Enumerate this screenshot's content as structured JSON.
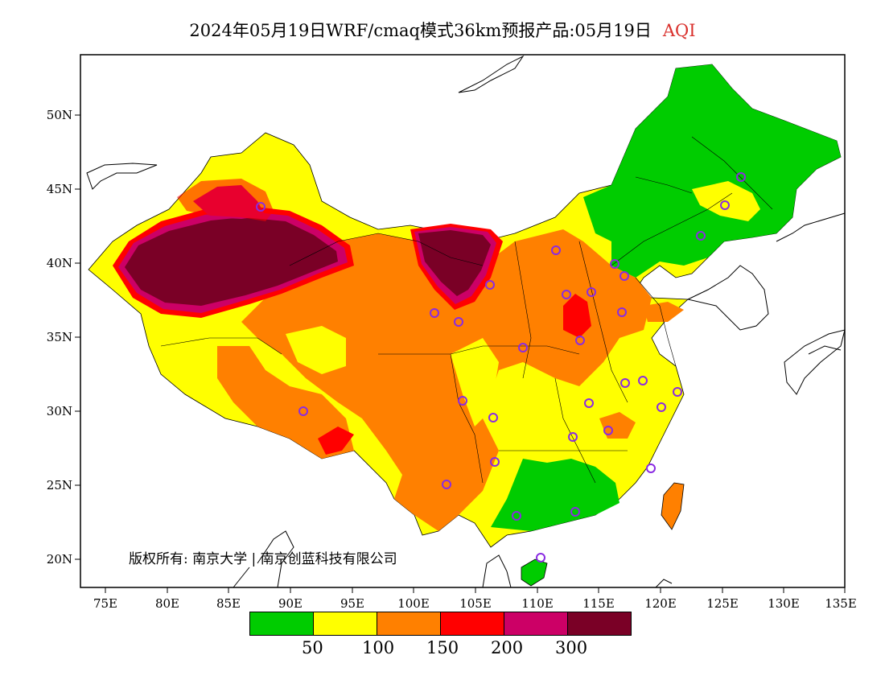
{
  "title": {
    "main": "2024年05月19日WRF/cmaq模式36km预报产品:05月19日",
    "pollutant": "AQI"
  },
  "map": {
    "lat_labels": [
      "50N",
      "45N",
      "40N",
      "35N",
      "30N",
      "25N",
      "20N"
    ],
    "lon_labels": [
      "75E",
      "80E",
      "85E",
      "90E",
      "95E",
      "100E",
      "105E",
      "110E",
      "115E",
      "120E",
      "125E",
      "130E",
      "135E"
    ]
  },
  "legend": {
    "colors": [
      "#00cc00",
      "#ffff00",
      "#ff8000",
      "#ff0000",
      "#cc0066",
      "#7a0026"
    ],
    "labels": [
      "50",
      "100",
      "150",
      "200",
      "300"
    ]
  },
  "colors": {
    "good": "#00cc00",
    "moderate": "#ffff00",
    "usg": "#ff8000",
    "unhealthy": "#ff0000",
    "very_unhealthy": "#cc0066",
    "hazardous": "#7a0026",
    "station": "#8a2be2"
  },
  "copyright": "版权所有: 南京大学 | 南京创蓝科技有限公司"
}
